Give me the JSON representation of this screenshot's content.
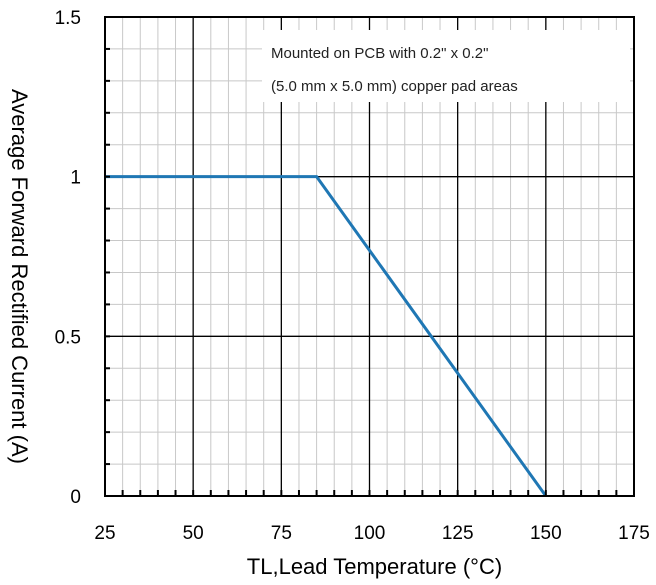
{
  "chart_data": {
    "type": "line",
    "title": "",
    "xlabel": "TL,Lead Temperature (°C)",
    "ylabel": "Average Forward Rectified Current (A)",
    "xlim": [
      25,
      175
    ],
    "ylim": [
      0,
      1.5
    ],
    "x_ticks": [
      25,
      50,
      75,
      100,
      125,
      150,
      175
    ],
    "x_tick_labels": [
      "25",
      "50",
      "75",
      "100",
      "125",
      "150",
      "175"
    ],
    "y_ticks": [
      0,
      0.5,
      1,
      1.5
    ],
    "y_tick_labels": [
      "0",
      "0.5",
      "1",
      "1.5"
    ],
    "grid": true,
    "series": [
      {
        "x": [
          25,
          85,
          150
        ],
        "y": [
          1.0,
          1.0,
          0.0
        ],
        "color": "#1f77b4"
      }
    ],
    "annotations": [
      "Mounted on PCB with 0.2\" x 0.2\"",
      "(5.0 mm x 5.0 mm) copper pad areas"
    ]
  }
}
